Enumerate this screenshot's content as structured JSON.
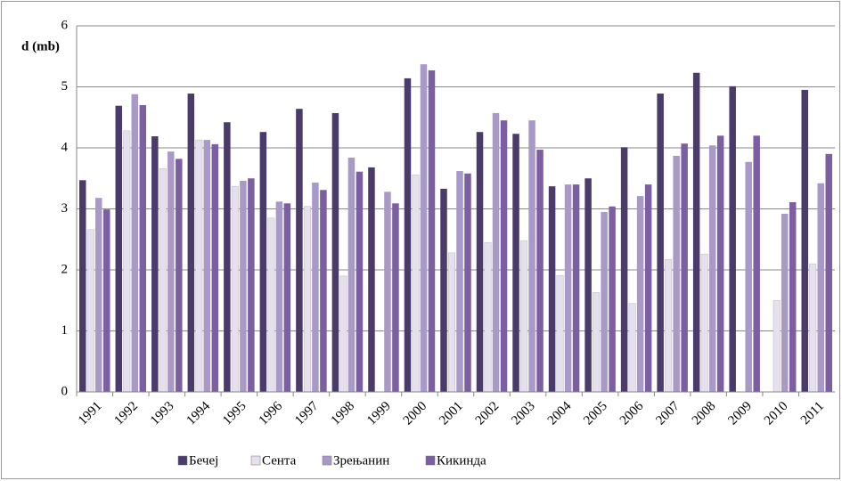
{
  "chart_data": {
    "type": "bar",
    "y_label": "d (mb)",
    "categories": [
      "1991",
      "1992",
      "1993",
      "1994",
      "1995",
      "1996",
      "1997",
      "1998",
      "1999",
      "2000",
      "2001",
      "2002",
      "2003",
      "2004",
      "2005",
      "2006",
      "2007",
      "2008",
      "2009",
      "2010",
      "2011"
    ],
    "series": [
      {
        "name": "Бечеј",
        "color": "#4b3b6b",
        "values": [
          3.47,
          4.69,
          4.19,
          4.89,
          4.42,
          4.26,
          4.64,
          4.57,
          3.68,
          5.14,
          3.33,
          4.26,
          4.23,
          3.37,
          3.5,
          4.01,
          4.89,
          5.23,
          5.01,
          null,
          4.95
        ]
      },
      {
        "name": "Сента",
        "color": "#e6dfee",
        "values": [
          2.66,
          4.28,
          3.66,
          4.13,
          3.37,
          2.85,
          3.04,
          1.9,
          null,
          3.56,
          2.28,
          2.45,
          2.48,
          1.91,
          1.63,
          1.45,
          2.17,
          2.26,
          null,
          1.5,
          2.1
        ]
      },
      {
        "name": "Зрењанин",
        "color": "#a999c6",
        "values": [
          3.18,
          4.88,
          3.94,
          4.13,
          3.46,
          3.12,
          3.43,
          3.84,
          3.28,
          5.37,
          3.62,
          4.57,
          4.45,
          3.4,
          2.95,
          3.21,
          3.87,
          4.04,
          3.77,
          2.92,
          3.42
        ]
      },
      {
        "name": "Кикинда",
        "color": "#7b5fa0",
        "values": [
          2.99,
          4.7,
          3.82,
          4.06,
          3.5,
          3.09,
          3.31,
          3.61,
          3.09,
          5.27,
          3.58,
          4.45,
          3.97,
          3.4,
          3.04,
          3.4,
          4.07,
          4.2,
          4.2,
          3.11,
          3.9
        ]
      }
    ],
    "ylim": [
      0,
      6
    ],
    "yticks": [
      0,
      1,
      2,
      3,
      4,
      5,
      6
    ],
    "grid": true,
    "legend": "bottom"
  }
}
